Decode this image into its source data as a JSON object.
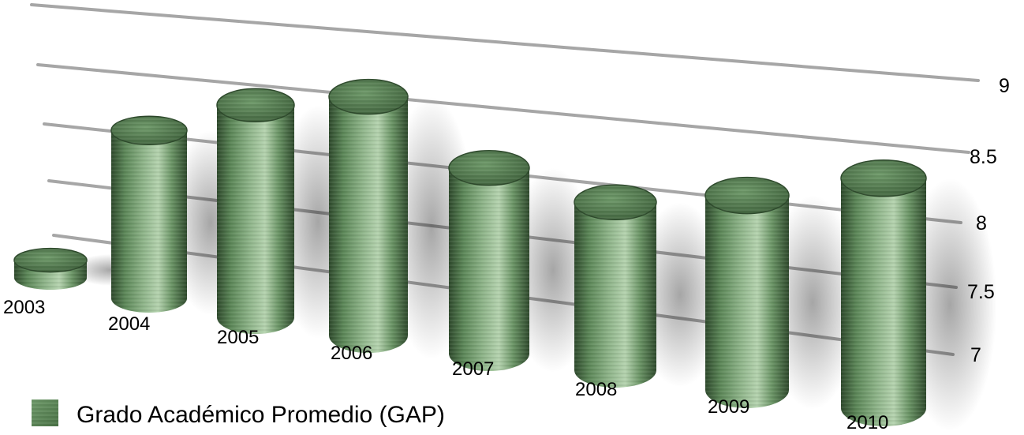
{
  "chart_data": {
    "type": "bar",
    "style": "3d-cylinder",
    "categories": [
      "2003",
      "2004",
      "2005",
      "2006",
      "2007",
      "2008",
      "2009",
      "2010"
    ],
    "series": [
      {
        "name": "Grado Académico Promedio (GAP)",
        "values": [
          7.1,
          7.95,
          8.2,
          8.35,
          8.05,
          7.95,
          8.1,
          8.3
        ]
      }
    ],
    "y_ticks": [
      "7",
      "7.5",
      "8",
      "8.5",
      "9"
    ],
    "ylim": [
      7,
      9
    ],
    "grid": true,
    "legend": "bottom-left",
    "colors": {
      "bar": "#5f8a5c",
      "bar_dark": "#2e4a2c",
      "bar_light": "#a9c9a3",
      "top": "#4f7a4b",
      "grid": "#a6a6a6"
    }
  }
}
